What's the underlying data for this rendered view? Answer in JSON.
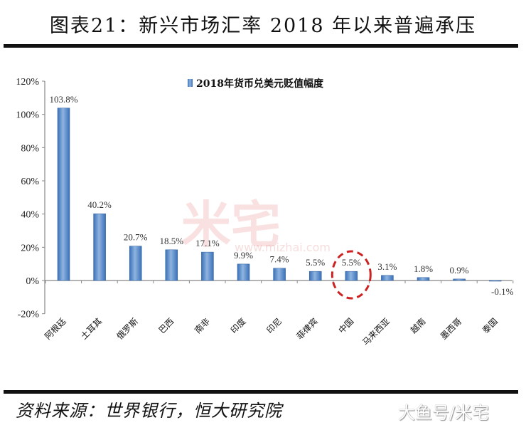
{
  "header": {
    "title": "图表21：新兴市场汇率 2018 年以来普遍承压"
  },
  "footer": {
    "source": "资料来源：世界银行，恒大研究院",
    "watermark": "大鱼号/米宅"
  },
  "watermark": {
    "center": "米宅",
    "url": "www.mizhai.com"
  },
  "colors": {
    "bar": "#3a70b8",
    "bar_light": "#8fb4e0",
    "highlight": "#cc2222",
    "axis": "#888888"
  },
  "chart_data": {
    "type": "bar",
    "title": "",
    "legend": [
      "2018年货币兑美元贬值幅度"
    ],
    "legend_position": "top-center",
    "categories": [
      "阿根廷",
      "土耳其",
      "俄罗斯",
      "巴西",
      "南非",
      "印度",
      "印尼",
      "菲律宾",
      "中国",
      "马来西亚",
      "越南",
      "墨西哥",
      "泰国"
    ],
    "series": [
      {
        "name": "2018年货币兑美元贬值幅度",
        "values": [
          103.8,
          40.2,
          20.7,
          18.5,
          17.1,
          9.9,
          7.4,
          5.5,
          5.5,
          3.1,
          1.8,
          0.9,
          -0.1
        ]
      }
    ],
    "data_labels": [
      "103.8%",
      "40.2%",
      "20.7%",
      "18.5%",
      "17.1%",
      "9.9%",
      "7.4%",
      "5.5%",
      "5.5%",
      "3.1%",
      "1.8%",
      "0.9%",
      "-0.1%"
    ],
    "yticks": [
      "120%",
      "100%",
      "80%",
      "60%",
      "40%",
      "20%",
      "0%",
      "-20%"
    ],
    "ylim": [
      -20,
      120
    ],
    "xlabel": "",
    "ylabel": "",
    "grid": false,
    "annotations": [
      {
        "type": "dashed-circle",
        "target": "中国",
        "color": "#cc2222"
      }
    ]
  }
}
